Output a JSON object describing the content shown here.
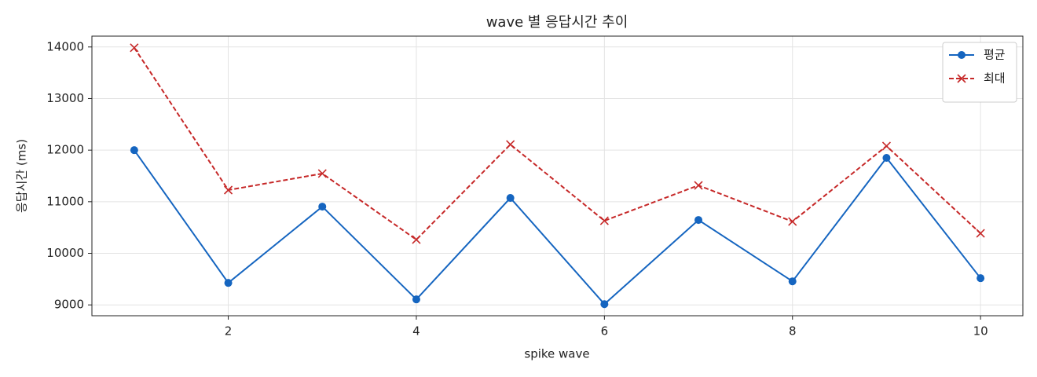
{
  "chart_data": {
    "type": "line",
    "title": "wave 별 응답시간 추이",
    "xlabel": "spike wave",
    "ylabel": "응답시간 (ms)",
    "x": [
      1,
      2,
      3,
      4,
      5,
      6,
      7,
      8,
      9,
      10
    ],
    "series": [
      {
        "name": "평균",
        "color": "#1565c0",
        "marker": "o",
        "linestyle": "solid",
        "values": [
          12000,
          9427,
          10905,
          9107,
          11073,
          9015,
          10646,
          9457,
          11850,
          9518
        ]
      },
      {
        "name": "최대",
        "color": "#c62828",
        "marker": "x",
        "linestyle": "dashed",
        "values": [
          13985,
          11226,
          11546,
          10265,
          12110,
          10631,
          11317,
          10616,
          12079,
          10387
        ]
      }
    ],
    "xlim": [
      0.55,
      10.45
    ],
    "xticks": [
      2,
      4,
      6,
      8,
      10
    ],
    "ylim": [
      8790,
      14210
    ],
    "yticks": [
      9000,
      10000,
      11000,
      12000,
      13000,
      14000
    ],
    "grid": true,
    "legend": "upper right"
  }
}
